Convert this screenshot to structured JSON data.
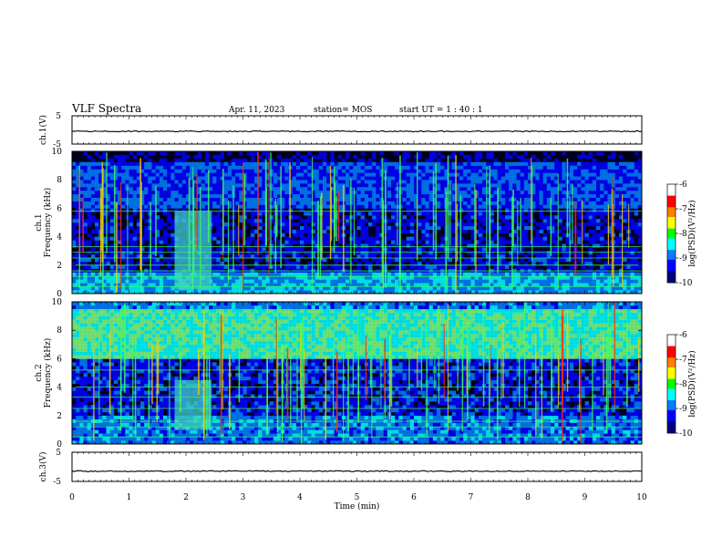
{
  "header": {
    "title": "VLF Spectra",
    "date": "Apr. 11, 2023",
    "station": "station= MOS",
    "start": "start  UT  =   1 : 40 : 1"
  },
  "colors": {
    "background": "#000033",
    "colormap": [
      "#000080",
      "#0000ff",
      "#0080ff",
      "#00ffff",
      "#80ff80",
      "#ffff00",
      "#ff8000",
      "#ff0000",
      "#ffffff"
    ]
  },
  "chart_data": [
    {
      "type": "line",
      "panel": "ch1-waveform",
      "ylabel": "ch.1(V)",
      "ylim": [
        -5,
        5
      ],
      "yticks": [
        "5",
        "-5"
      ],
      "x": [
        0,
        10
      ],
      "values": [
        -0.5,
        -0.5
      ],
      "xlim": [
        0,
        10
      ]
    },
    {
      "type": "heatmap",
      "panel": "ch1-spectrogram",
      "ylabel": "ch.1\nFrequency  (kHz)",
      "ylim": [
        0,
        10
      ],
      "yticks": [
        "0",
        "2",
        "4",
        "6",
        "8",
        "10"
      ],
      "xlim": [
        0,
        10
      ],
      "colorbar": {
        "label": "log(PSD)(V²/Hz)",
        "range": [
          -10,
          -6
        ],
        "ticks": [
          "-6",
          "-7",
          "-8",
          "-9",
          "-10"
        ]
      },
      "bright_block": {
        "x": [
          1.8,
          2.45
        ],
        "freq": [
          0.3,
          5.8
        ]
      },
      "hlines_khz": [
        0.5,
        1.2,
        1.6,
        2.0,
        2.5,
        2.9,
        3.3,
        5.8
      ]
    },
    {
      "type": "heatmap",
      "panel": "ch2-spectrogram",
      "ylabel": "ch.2\nFrequency  (kHz)",
      "ylim": [
        0,
        10
      ],
      "yticks": [
        "0",
        "2",
        "4",
        "6",
        "8",
        "10"
      ],
      "xlim": [
        0,
        10
      ],
      "colorbar": {
        "label": "log(PSD)(V²/Hz)",
        "range": [
          -10,
          -6
        ],
        "ticks": [
          "-6",
          "-7",
          "-8",
          "-9",
          "-10"
        ]
      },
      "bright_block": {
        "x": [
          1.8,
          2.45
        ],
        "freq": [
          1.0,
          4.5
        ]
      },
      "hlines_khz": [
        0.5,
        1.2,
        1.6,
        2.5,
        3.3,
        4.0,
        5.2
      ]
    },
    {
      "type": "line",
      "panel": "ch3-waveform",
      "ylabel": "ch.3(V)",
      "ylim": [
        -5,
        5
      ],
      "yticks": [
        "5",
        "-5"
      ],
      "x": [
        0,
        10
      ],
      "values": [
        -1.5,
        -1.5
      ],
      "xlim": [
        0,
        10
      ],
      "xlabel": "Time  (min)",
      "xticks": [
        "0",
        "1",
        "2",
        "3",
        "4",
        "5",
        "6",
        "7",
        "8",
        "9",
        "10"
      ]
    }
  ]
}
